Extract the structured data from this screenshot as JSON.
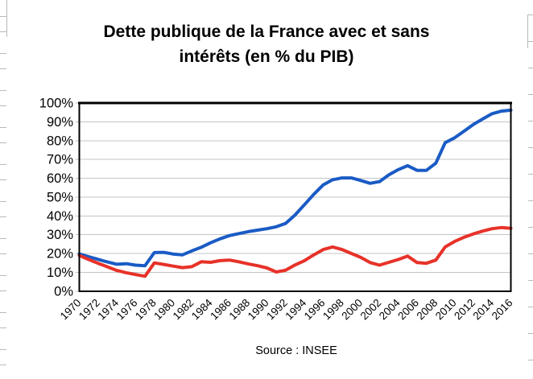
{
  "header": {
    "title_line1": "Dette publique de la France avec et sans",
    "title_line2": "intérêts (en % du PIB)"
  },
  "footer": {
    "source": "Source : INSEE"
  },
  "colors": {
    "series_avec_interets": "#1A5BC5",
    "series_sans_interets": "#E73229",
    "gridline": "#C4C4C4",
    "axis_border": "#000000",
    "background": "#FFFFFF",
    "edge_artifact_gray": "#B9B9B9"
  },
  "chart_data": {
    "type": "line",
    "title": "Dette publique de la France avec et sans intérêts (en % du PIB)",
    "xlabel": "",
    "ylabel": "",
    "ylim": [
      0,
      100
    ],
    "y_tick_step": 10,
    "y_tick_format": "percent",
    "grid": true,
    "legend": "none",
    "x_label_rotation_deg": -45,
    "years_start": 1970,
    "years_end": 2016,
    "x_tick_labels": [
      "1970",
      "1972",
      "1974",
      "1976",
      "1978",
      "1980",
      "1982",
      "1984",
      "1986",
      "1988",
      "1990",
      "1992",
      "1994",
      "1996",
      "1998",
      "2000",
      "2002",
      "2004",
      "2006",
      "2008",
      "2010",
      "2012",
      "2014",
      "2016"
    ],
    "series": [
      {
        "name": "dette-avec-interets",
        "color": "#1A5BC5",
        "values": [
          19.8,
          18.3,
          16.9,
          15.5,
          14.3,
          14.6,
          13.8,
          13.5,
          20.5,
          20.6,
          19.7,
          19.3,
          21.4,
          23.3,
          25.7,
          27.8,
          29.5,
          30.6,
          31.6,
          32.4,
          33.2,
          34.2,
          36,
          40.5,
          46,
          51.5,
          56.5,
          59.2,
          60.2,
          60.2,
          58.8,
          57.3,
          58.2,
          61.8,
          64.6,
          66.7,
          64.2,
          64.2,
          68,
          78.9,
          81.5,
          85,
          88.6,
          91.5,
          94.3,
          95.7,
          96.2
        ]
      },
      {
        "name": "dette-sans-interets",
        "color": "#E73229",
        "values": [
          19,
          16.8,
          14.8,
          12.9,
          11,
          9.8,
          8.8,
          7.9,
          15,
          14.2,
          13.3,
          12.5,
          13,
          15.6,
          15.3,
          16.2,
          16.5,
          15.6,
          14.5,
          13.5,
          12.3,
          10.2,
          11.1,
          13.9,
          16.2,
          19.3,
          22.1,
          23.5,
          22.1,
          20,
          17.9,
          15.2,
          13.8,
          15.3,
          16.8,
          18.6,
          15.2,
          14.8,
          16.5,
          23.5,
          26.4,
          28.6,
          30.4,
          31.9,
          33.2,
          33.8,
          33.4
        ]
      }
    ]
  }
}
